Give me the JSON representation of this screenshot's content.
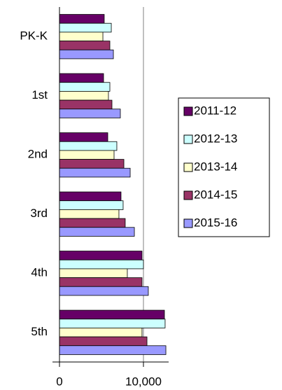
{
  "chart_data": {
    "type": "bar",
    "orientation": "horizontal",
    "categories": [
      "PK-K",
      "1st",
      "2nd",
      "3rd",
      "4th",
      "5th"
    ],
    "series": [
      {
        "name": "2011-12",
        "color": "#660066",
        "values": [
          5330,
          5250,
          5750,
          7330,
          9830,
          12500
        ]
      },
      {
        "name": "2012-13",
        "color": "#ccffff",
        "values": [
          6170,
          6000,
          6830,
          7580,
          10000,
          12580
        ]
      },
      {
        "name": "2013-14",
        "color": "#ffffcc",
        "values": [
          5170,
          5830,
          6500,
          7080,
          8080,
          9830
        ]
      },
      {
        "name": "2014-15",
        "color": "#993366",
        "values": [
          6000,
          6250,
          7670,
          7830,
          9830,
          10420
        ]
      },
      {
        "name": "2015-16",
        "color": "#9999ff",
        "values": [
          6420,
          7250,
          8420,
          8920,
          10580,
          12670
        ]
      }
    ],
    "xlim": [
      0,
      13000
    ],
    "xticks": [
      0,
      {
        "value": 10000,
        "label": "10,000"
      }
    ],
    "grid": true,
    "legend": "right"
  }
}
